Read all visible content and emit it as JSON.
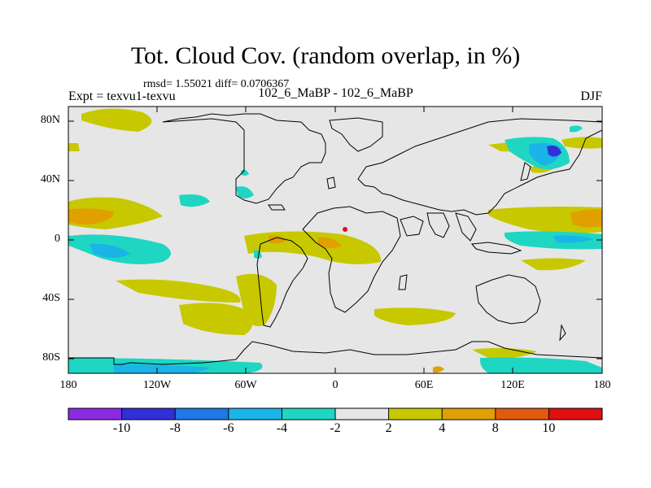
{
  "title": "Tot. Cloud Cov. (random overlap, in %)",
  "stats": "rmsd= 1.55021 diff= 0.0706367",
  "experiment": "Expt = texvu1-texvu",
  "subtitle": "102_6_MaBP - 102_6_MaBP",
  "season": "DJF",
  "y_ticks": [
    "80N",
    "40N",
    "0",
    "40S",
    "80S"
  ],
  "x_ticks": [
    "180",
    "120W",
    "60W",
    "0",
    "60E",
    "120E",
    "180"
  ],
  "colorbar": {
    "labels": [
      "-10",
      "-8",
      "-6",
      "-4",
      "-2",
      "2",
      "4",
      "8",
      "10"
    ],
    "colors": [
      "#8a2be2",
      "#3030d8",
      "#1e78e6",
      "#1ab4e8",
      "#1ed6c2",
      "#e6e6e6",
      "#c8c800",
      "#e0a000",
      "#e05a10",
      "#e01010"
    ]
  },
  "chart_data": {
    "type": "heatmap",
    "title": "Tot. Cloud Cov. (random overlap, in %)",
    "variable": "Total cloud cover difference (%)",
    "season": "DJF",
    "lon_range": [
      -180,
      180
    ],
    "lat_range": [
      -90,
      90
    ],
    "contour_levels": [
      -10,
      -8,
      -6,
      -4,
      -2,
      2,
      4,
      8,
      10
    ],
    "rmsd": 1.55021,
    "diff": 0.0706367
  }
}
